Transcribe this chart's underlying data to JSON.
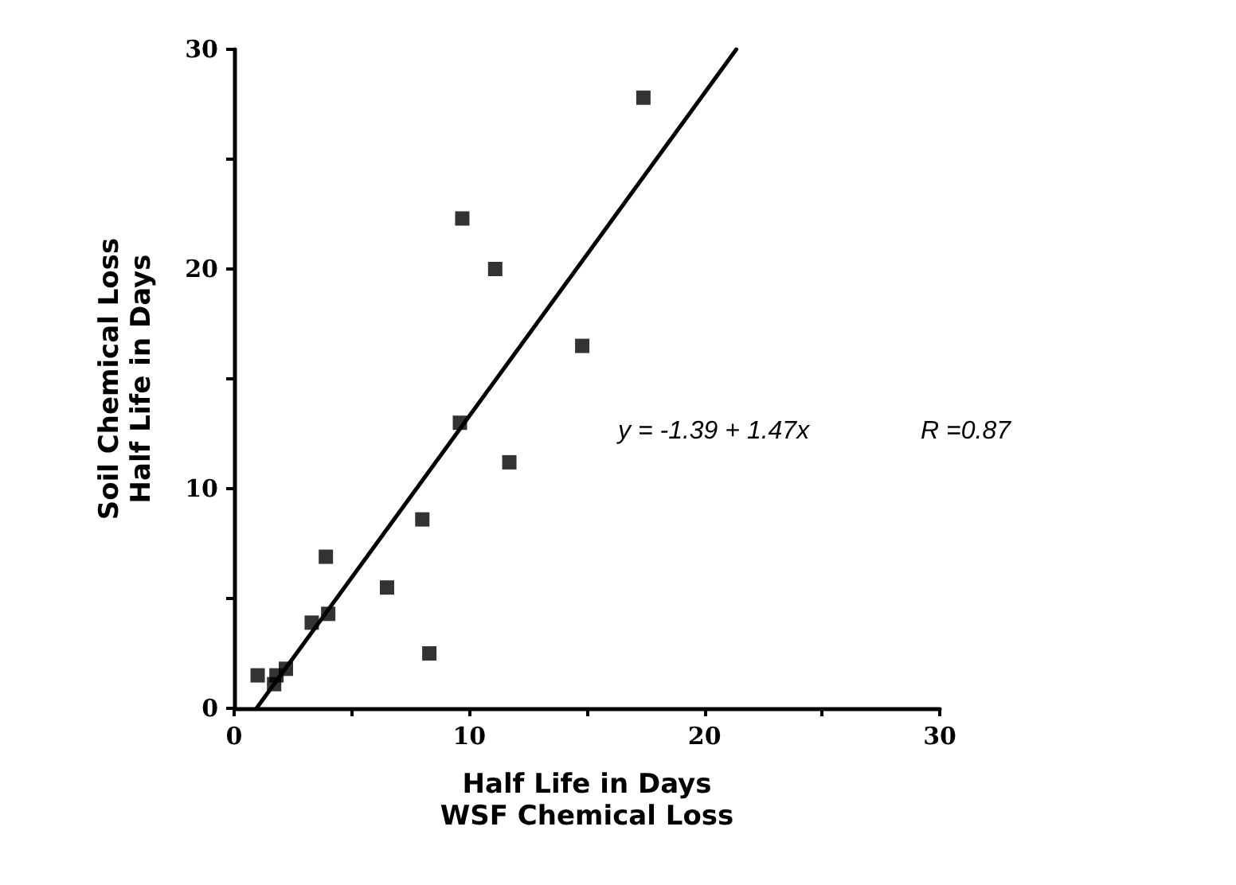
{
  "chart_data": {
    "type": "scatter",
    "xlabel": "Half Life in Days\nWSF Chemical Loss",
    "ylabel": "Soil Chemical Loss\nHalf Life in Days",
    "xlim": [
      0,
      30
    ],
    "ylim": [
      0,
      30
    ],
    "xticks": [
      0,
      {
        "value": 5,
        "label": null
      },
      10,
      {
        "value": 15,
        "label": null
      },
      20,
      {
        "value": 25,
        "label": null
      },
      30
    ],
    "yticks": [
      0,
      {
        "value": 5,
        "label": null
      },
      10,
      {
        "value": 15,
        "label": null
      },
      20,
      {
        "value": 25,
        "label": null
      },
      30
    ],
    "grid": false,
    "marker": "square",
    "annotations": [
      "y = -1.39 + 1.47x",
      "R =0.87"
    ],
    "series": [
      {
        "color": "#000000",
        "x": [
          1.0,
          1.8,
          1.7,
          2.2,
          3.3,
          4.0,
          3.9,
          6.5,
          8.0,
          8.3,
          9.7,
          11.1,
          14.8,
          9.6,
          11.7,
          17.4
        ],
        "values": [
          1.5,
          1.5,
          1.1,
          1.8,
          3.9,
          4.3,
          6.9,
          5.5,
          8.6,
          2.5,
          22.3,
          20.0,
          16.5,
          13.0,
          11.2,
          27.8
        ]
      },
      {
        "type": "line",
        "color": "#000000",
        "marker": "none",
        "line_style": "solid",
        "x": [
          0.95,
          21.35
        ],
        "values": [
          0,
          30
        ]
      }
    ]
  }
}
